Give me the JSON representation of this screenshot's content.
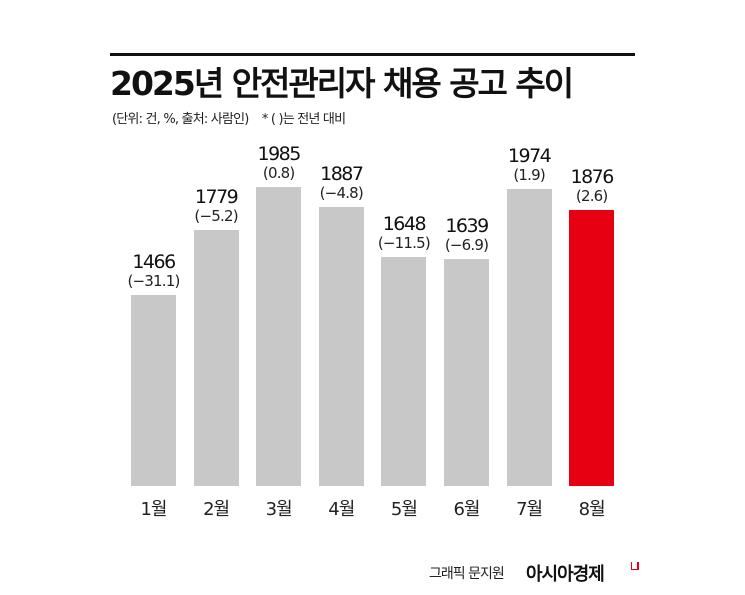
{
  "header": {
    "title": "2025년 안전관리자 채용 공고 추이",
    "subtitle": "(단위: 건, %, 출처: 사람인)",
    "note": "* ( )는 전년 대비"
  },
  "footer": {
    "credit": "그래픽 문지원",
    "brand": "아시아경제"
  },
  "colors": {
    "bar_default": "#c8c8c8",
    "bar_highlight": "#e60012",
    "text": "#111111"
  },
  "chart_data": {
    "type": "bar",
    "title": "2025년 안전관리자 채용 공고 추이",
    "subtitle": "(단위: 건, %, 출처: 사람인)",
    "annotation": "* ( )는 전년 대비",
    "xlabel": "",
    "ylabel": "",
    "grid": false,
    "legend": null,
    "categories": [
      "1월",
      "2월",
      "3월",
      "4월",
      "5월",
      "6월",
      "7월",
      "8월"
    ],
    "values": [
      1466,
      1779,
      1985,
      1887,
      1648,
      1639,
      1974,
      1876
    ],
    "yoy_change_pct": [
      "(-31.1)",
      "(-5.2)",
      "(0.8)",
      "(-4.8)",
      "(-11.5)",
      "(-6.9)",
      "(1.9)",
      "(2.6)"
    ],
    "highlight_index": 7,
    "labels": {
      "values": [
        "1466",
        "1779",
        "1985",
        "1887",
        "1648",
        "1639",
        "1974",
        "1876"
      ]
    }
  }
}
